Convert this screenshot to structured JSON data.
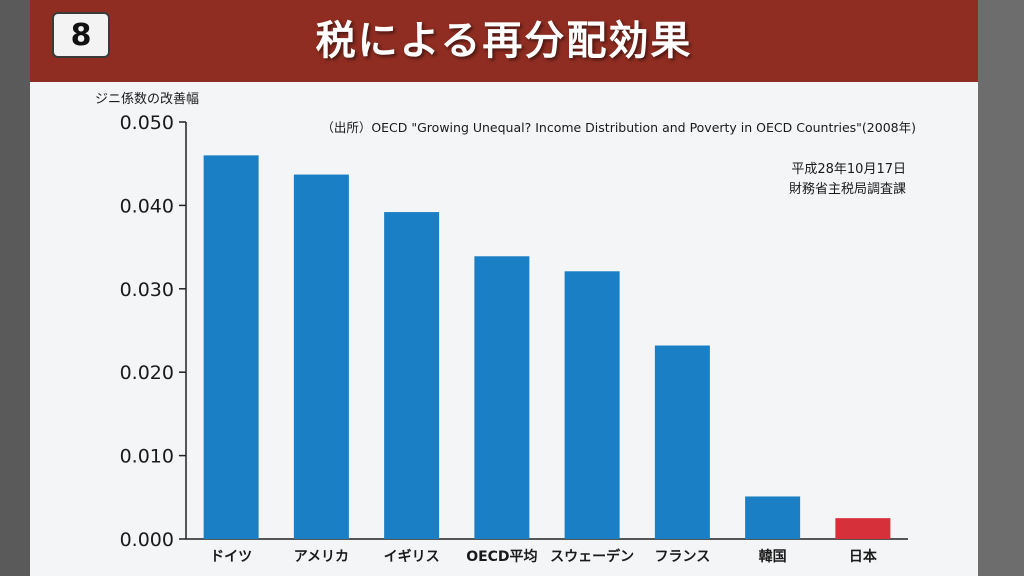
{
  "slide": {
    "number": "8",
    "title": "税による再分配効果"
  },
  "source_note": "（出所）OECD \"Growing Unequal? Income Distribution and Poverty in OECD Countries\"(2008年)",
  "date_note": "平成28年10月17日",
  "author_note": "財務省主税局調査課",
  "colors": {
    "header": "#8f2d22",
    "bar": "#1a7fc4",
    "highlight_bar": "#d6303a"
  },
  "chart_data": {
    "type": "bar",
    "ylabel": "ジニ係数の改善幅",
    "ylim": [
      0,
      0.05
    ],
    "yticks": [
      "0.000",
      "0.010",
      "0.020",
      "0.030",
      "0.040",
      "0.050"
    ],
    "categories": [
      "ドイツ",
      "アメリカ",
      "イギリス",
      "OECD平均",
      "スウェーデン",
      "フランス",
      "韓国",
      "日本"
    ],
    "values": [
      0.046,
      0.0437,
      0.0392,
      0.0339,
      0.0321,
      0.0232,
      0.0051,
      0.0025
    ],
    "highlight": "日本",
    "grid": false
  }
}
